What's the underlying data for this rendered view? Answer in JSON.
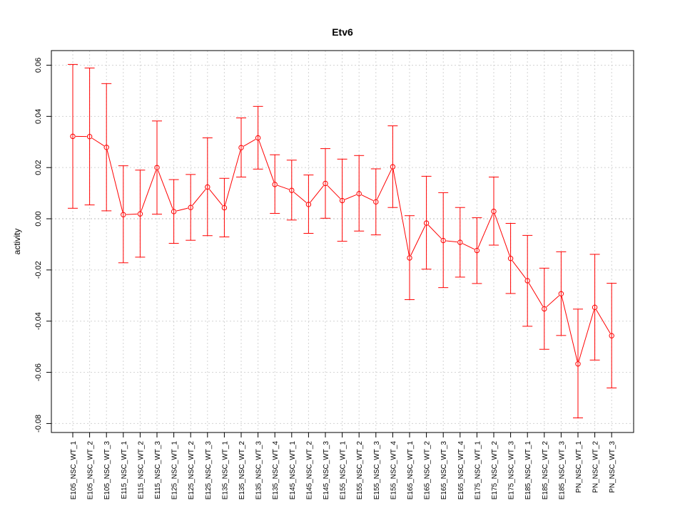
{
  "chart_data": {
    "type": "line",
    "title": "Etv6",
    "xlabel": "",
    "ylabel": "activity",
    "ylim": [
      -0.0835,
      0.0657
    ],
    "yticks": [
      -0.08,
      -0.06,
      -0.04,
      -0.02,
      0.0,
      0.02,
      0.04,
      0.06
    ],
    "ytick_labels": [
      "-0.08",
      "-0.06",
      "-0.04",
      "-0.02",
      "0.00",
      "0.02",
      "0.04",
      "0.06"
    ],
    "grid": true,
    "color": "#ff0000",
    "categories": [
      "E105_NSC_WT_1",
      "E105_NSC_WT_2",
      "E105_NSC_WT_3",
      "E115_NSC_WT_1",
      "E115_NSC_WT_2",
      "E115_NSC_WT_3",
      "E125_NSC_WT_1",
      "E125_NSC_WT_2",
      "E125_NSC_WT_3",
      "E135_NSC_WT_1",
      "E135_NSC_WT_2",
      "E135_NSC_WT_3",
      "E135_NSC_WT_4",
      "E145_NSC_WT_1",
      "E145_NSC_WT_2",
      "E145_NSC_WT_3",
      "E155_NSC_WT_1",
      "E155_NSC_WT_2",
      "E155_NSC_WT_3",
      "E155_NSC_WT_4",
      "E165_NSC_WT_1",
      "E165_NSC_WT_2",
      "E165_NSC_WT_3",
      "E165_NSC_WT_4",
      "E175_NSC_WT_1",
      "E175_NSC_WT_2",
      "E175_NSC_WT_3",
      "E185_NSC_WT_1",
      "E185_NSC_WT_2",
      "E185_NSC_WT_3",
      "PN_NSC_WT_1",
      "PN_NSC_WT_2",
      "PN_NSC_WT_3"
    ],
    "values": [
      0.0322,
      0.0321,
      0.0279,
      0.0016,
      0.0019,
      0.02,
      0.0028,
      0.0044,
      0.0124,
      0.0043,
      0.0278,
      0.0316,
      0.0134,
      0.0111,
      0.0056,
      0.0138,
      0.0071,
      0.0098,
      0.0066,
      0.0203,
      -0.0153,
      -0.0017,
      -0.0085,
      -0.0092,
      -0.0124,
      0.0029,
      -0.0155,
      -0.0242,
      -0.0352,
      -0.0293,
      -0.0567,
      -0.0346,
      -0.0457
    ],
    "upper": [
      0.0603,
      0.0589,
      0.0528,
      0.0207,
      0.019,
      0.0382,
      0.0153,
      0.0173,
      0.0316,
      0.0158,
      0.0394,
      0.0439,
      0.025,
      0.0229,
      0.0171,
      0.0274,
      0.0233,
      0.0247,
      0.0195,
      0.0363,
      0.0012,
      0.0166,
      0.0102,
      0.0044,
      0.0004,
      0.0163,
      -0.0018,
      -0.0065,
      -0.0193,
      -0.0129,
      -0.0353,
      -0.0139,
      -0.0252
    ],
    "lower": [
      0.0041,
      0.0054,
      0.0031,
      -0.0172,
      -0.015,
      0.0018,
      -0.0096,
      -0.0084,
      -0.0066,
      -0.0071,
      0.0163,
      0.0194,
      0.0021,
      -0.0005,
      -0.0057,
      0.0002,
      -0.0088,
      -0.0048,
      -0.0063,
      0.0044,
      -0.0316,
      -0.0197,
      -0.0269,
      -0.0228,
      -0.0253,
      -0.0103,
      -0.0292,
      -0.042,
      -0.051,
      -0.0456,
      -0.0778,
      -0.0552,
      -0.0661
    ]
  }
}
